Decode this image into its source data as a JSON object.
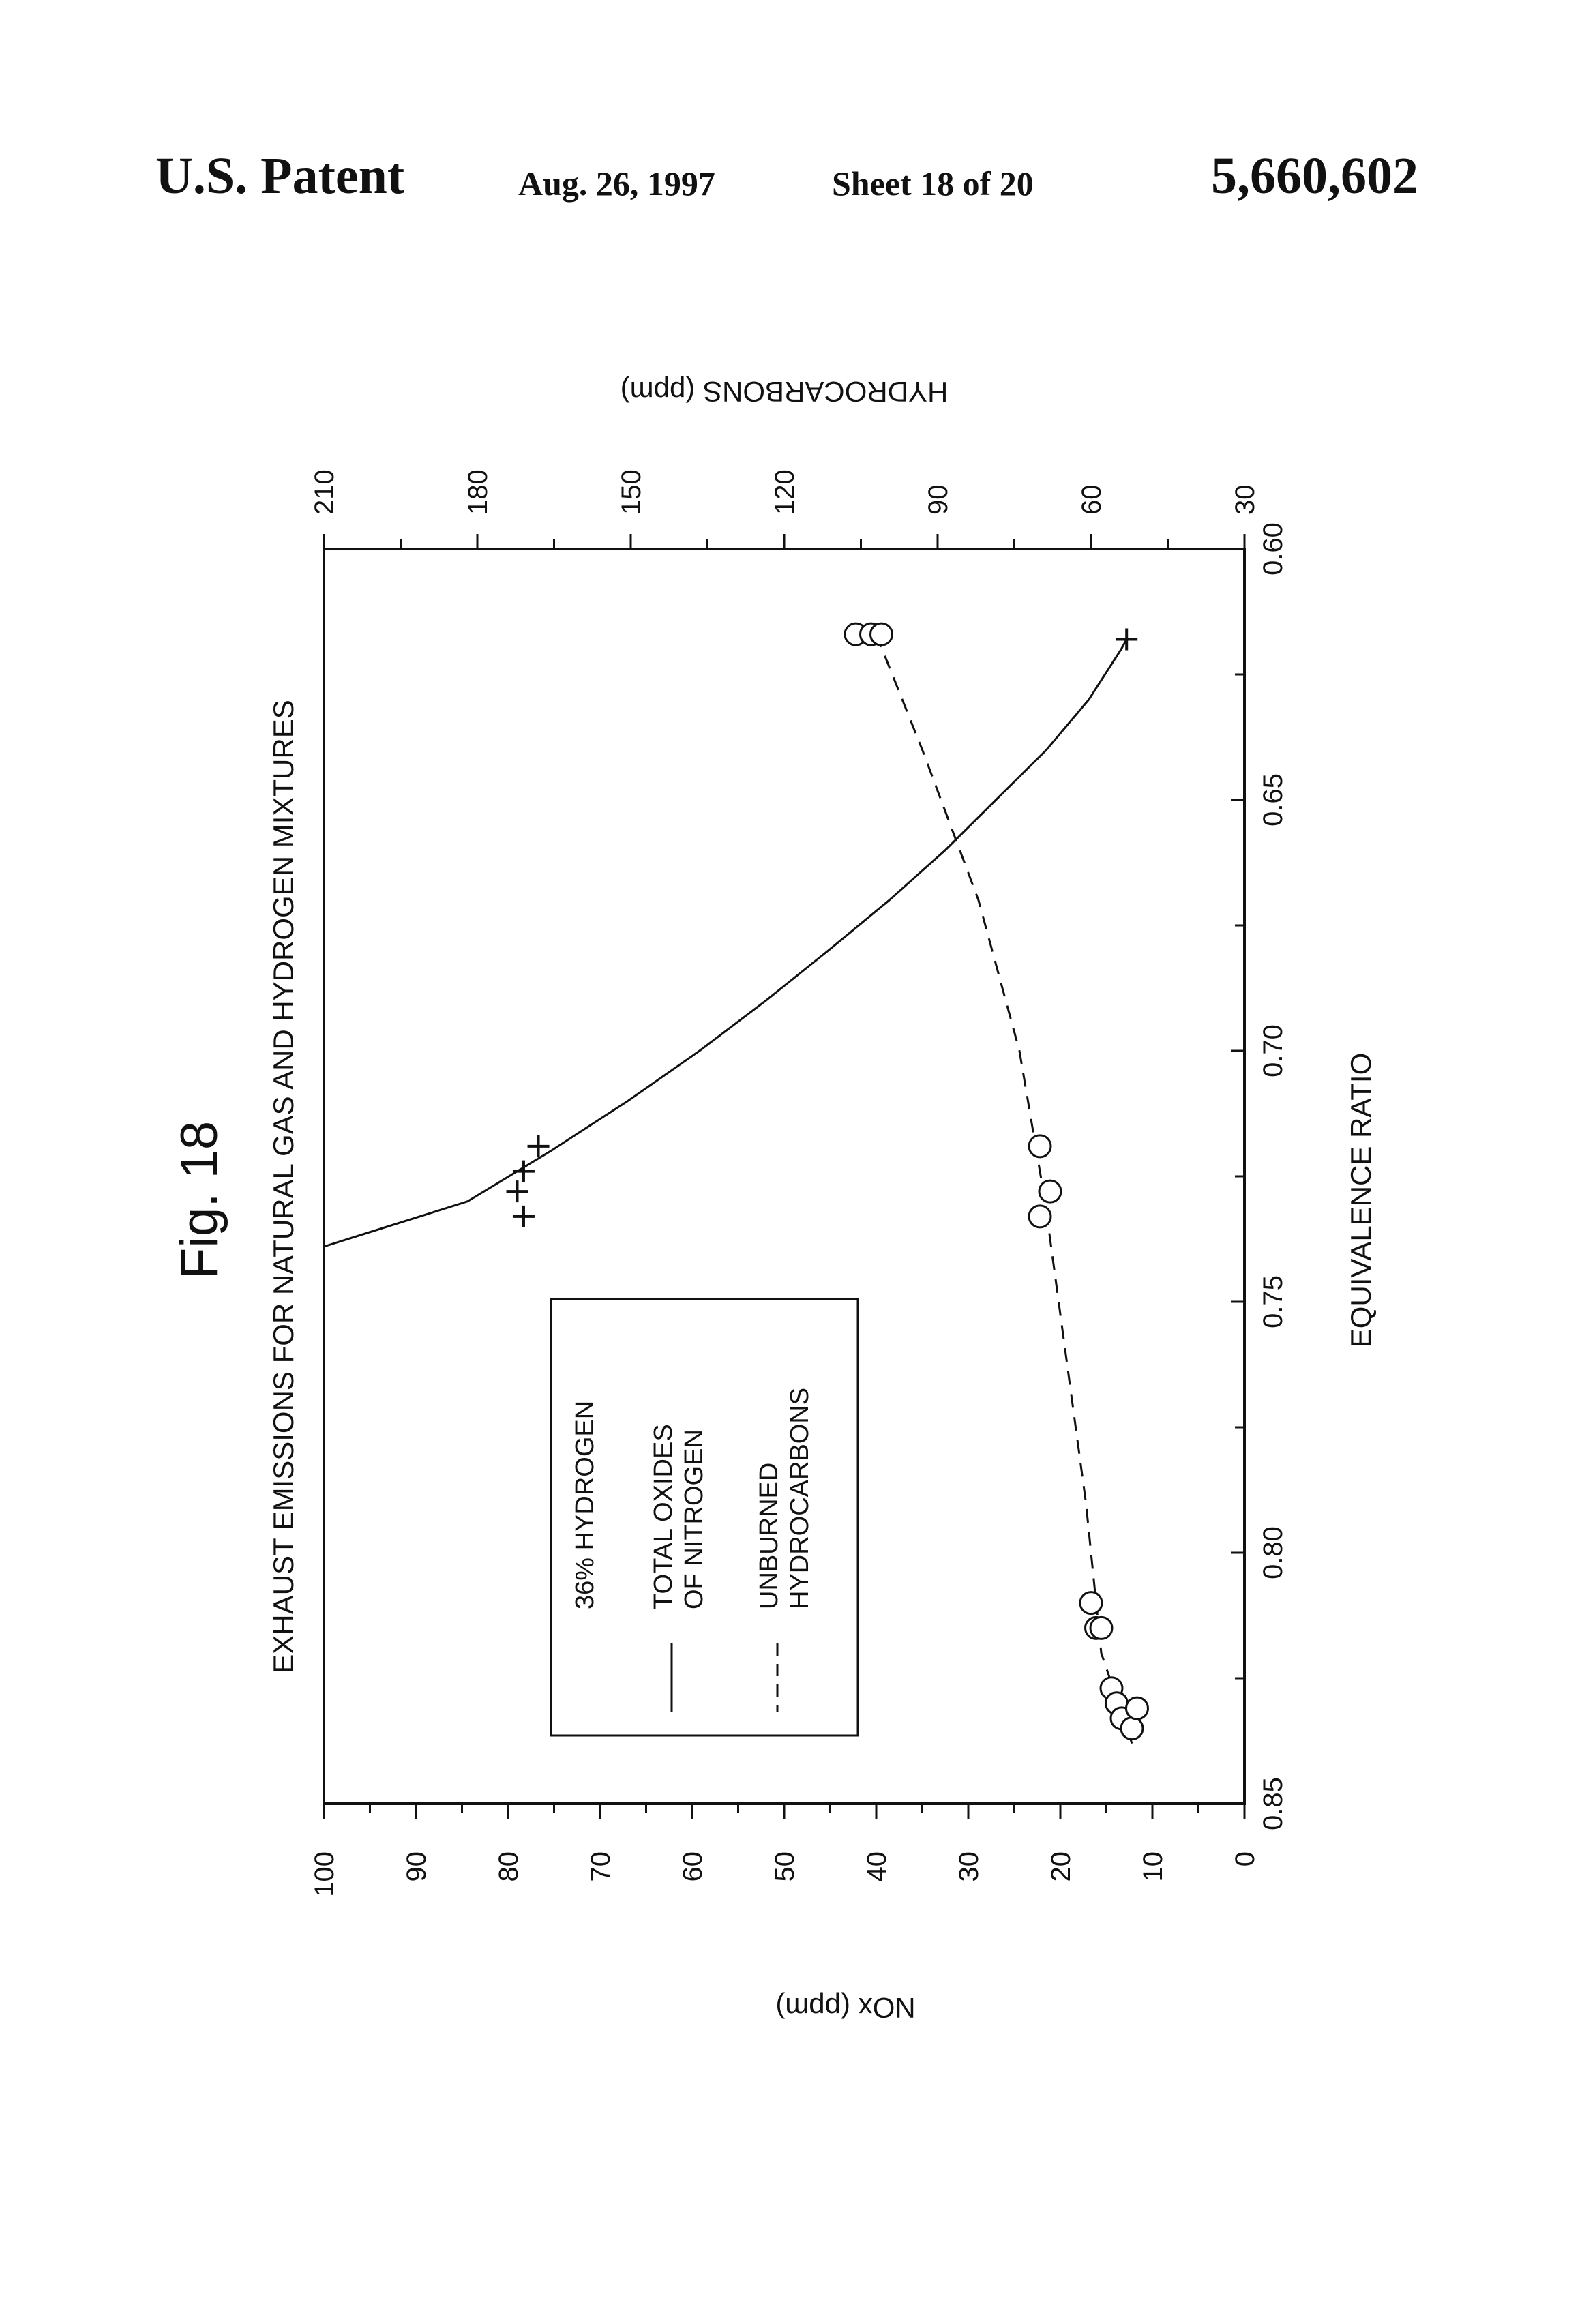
{
  "header": {
    "patent_label": "U.S. Patent",
    "date": "Aug. 26, 1997",
    "sheet": "Sheet 18 of 20",
    "patent_number": "5,660,602"
  },
  "figure_label": "Fig. 18",
  "chart_data": {
    "type": "scatter",
    "title": "EXHAUST EMISSIONS FOR NATURAL GAS AND HYDROGEN MIXTURES",
    "xlabel": "EQUIVALENCE RATIO",
    "ylabel": "NOx (ppm)",
    "ylabel_secondary": "HYDROCARBONS (ppm)",
    "xlim": [
      0.85,
      0.6
    ],
    "ylim": [
      0,
      100
    ],
    "ylim_secondary": [
      30,
      210
    ],
    "x_ticks": [
      "0.85",
      "0.80",
      "0.75",
      "0.70",
      "0.65",
      "0.60"
    ],
    "y_ticks": [
      "0",
      "10",
      "20",
      "30",
      "40",
      "50",
      "60",
      "70",
      "80",
      "90",
      "100"
    ],
    "y2_ticks": [
      "30",
      "60",
      "90",
      "120",
      "150",
      "180",
      "210"
    ],
    "legend": {
      "title": "36% HYDROGEN",
      "entries": [
        {
          "style": "solid",
          "label_line1": "TOTAL OXIDES",
          "label_line2": "OF NITROGEN"
        },
        {
          "style": "dashed",
          "label_line1": "UNBURNED",
          "label_line2": "HYDROCARBONS"
        }
      ]
    },
    "series": [
      {
        "name": "TOTAL OXIDES OF NITROGEN",
        "axis": "left",
        "marker": "plus",
        "line": "solid",
        "points": [
          [
            0.618,
            12.8
          ],
          [
            0.719,
            76.7
          ],
          [
            0.724,
            78.3
          ],
          [
            0.728,
            79.0
          ],
          [
            0.733,
            78.3
          ]
        ],
        "curve": [
          [
            0.739,
            100
          ],
          [
            0.73,
            84.4
          ],
          [
            0.72,
            75.4
          ],
          [
            0.71,
            67.0
          ],
          [
            0.7,
            59.2
          ],
          [
            0.69,
            52.0
          ],
          [
            0.68,
            45.2
          ],
          [
            0.67,
            38.6
          ],
          [
            0.66,
            32.5
          ],
          [
            0.65,
            27.0
          ],
          [
            0.64,
            21.5
          ],
          [
            0.63,
            16.9
          ],
          [
            0.62,
            13.4
          ],
          [
            0.618,
            12.8
          ]
        ]
      },
      {
        "name": "UNBURNED HYDROCARBONS",
        "axis": "right",
        "marker": "circle",
        "line": "dashed",
        "points": [
          [
            0.617,
            106
          ],
          [
            0.617,
            103
          ],
          [
            0.617,
            101
          ],
          [
            0.719,
            70
          ],
          [
            0.728,
            68
          ],
          [
            0.733,
            70
          ],
          [
            0.81,
            60
          ],
          [
            0.815,
            59
          ],
          [
            0.815,
            58
          ],
          [
            0.827,
            56
          ],
          [
            0.83,
            55
          ],
          [
            0.833,
            54
          ],
          [
            0.835,
            52
          ],
          [
            0.831,
            51
          ]
        ],
        "curve": [
          [
            0.617,
            102
          ],
          [
            0.64,
            93
          ],
          [
            0.67,
            82
          ],
          [
            0.7,
            74
          ],
          [
            0.73,
            69
          ],
          [
            0.76,
            65
          ],
          [
            0.79,
            61
          ],
          [
            0.82,
            58
          ],
          [
            0.838,
            52
          ]
        ]
      }
    ]
  }
}
